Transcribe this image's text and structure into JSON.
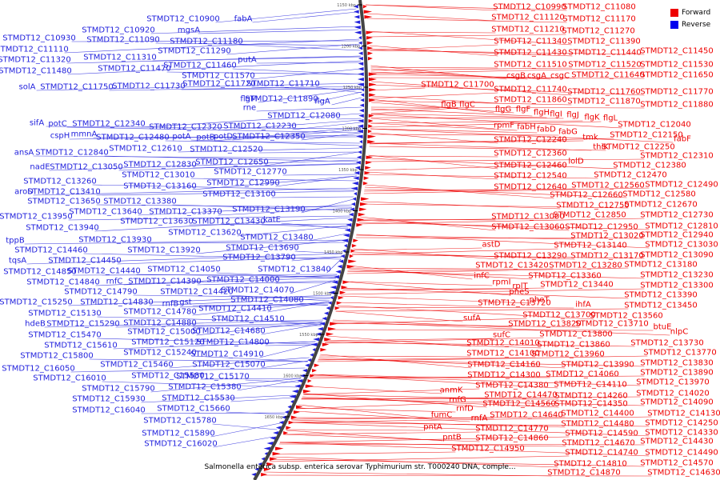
{
  "caption": "Salmonella enterica subsp. enterica serovar Typhimurium str. T000240 DNA, comple...",
  "legend": [
    {
      "label": "Forward",
      "color": "#ee0000"
    },
    {
      "label": "Reverse",
      "color": "#0000ee"
    }
  ],
  "colors": {
    "forward": "#ee0000",
    "reverse": "#2222dd",
    "backbone": "#444444"
  },
  "ticks": [
    "1150 kbp",
    "1200 kbp",
    "1250 kbp",
    "1300 kbp",
    "1350 kbp",
    "1400 kbp",
    "1450 kbp",
    "1500 kbp",
    "1550 kbp",
    "1600 kbp",
    "1650 kbp"
  ],
  "left_labels": [
    [
      "STMDT12_C10900",
      229,
      23
    ],
    [
      "fabA",
      304,
      23
    ],
    [
      "STMDT12_C10920",
      148,
      37
    ],
    [
      "mgsA",
      236,
      37
    ],
    [
      "STMDT12_C10930",
      49,
      47
    ],
    [
      "STMDT12_C11090",
      154,
      49
    ],
    [
      "STMDT12_C11180",
      258,
      51
    ],
    [
      "STMDT12_C11110",
      40,
      61
    ],
    [
      "STMDT12_C11290",
      243,
      63
    ],
    [
      "STMDT12_C11320",
      43,
      74
    ],
    [
      "STMDT12_C11310",
      150,
      71
    ],
    [
      "putA",
      309,
      74
    ],
    [
      "STMDT12_C11470",
      168,
      85
    ],
    [
      "STMDT12_C11460",
      250,
      81
    ],
    [
      "STMDT12_C11480",
      44,
      88
    ],
    [
      "STMDT12_C11570",
      273,
      94
    ],
    [
      "solA",
      34,
      108
    ],
    [
      "STMDT12_C11750",
      96,
      108
    ],
    [
      "STMDT12_C11730",
      186,
      107
    ],
    [
      "STMDT12_C11720",
      274,
      104
    ],
    [
      "STMDT12_C11710",
      354,
      104
    ],
    [
      "flgM",
      311,
      123
    ],
    [
      "STMDT12_C11890",
      352,
      123
    ],
    [
      "flgA",
      403,
      126
    ],
    [
      "rne",
      312,
      134
    ],
    [
      "STMDT12_C12080",
      380,
      144
    ],
    [
      "sifA",
      46,
      153
    ],
    [
      "potC",
      72,
      154
    ],
    [
      "STMDT12_C12340",
      136,
      154
    ],
    [
      "STMDT12_C12320",
      232,
      158
    ],
    [
      "STMDT12_C12230",
      325,
      157
    ],
    [
      "cspH",
      75,
      169
    ],
    [
      "mmnA",
      105,
      167
    ],
    [
      "STMDT12_C12480",
      166,
      171
    ],
    [
      "potA",
      227,
      170
    ],
    [
      "potB",
      257,
      171
    ],
    [
      "potD",
      279,
      170
    ],
    [
      "STMDT12_C12350",
      336,
      170
    ],
    [
      "STMDT12_C12610",
      182,
      185
    ],
    [
      "STMDT12_C12520",
      283,
      186
    ],
    [
      "ansA",
      30,
      190
    ],
    [
      "STMDT12_C12840",
      90,
      190
    ],
    [
      "STMDT12_C12650",
      290,
      202
    ],
    [
      "nadE",
      50,
      208
    ],
    [
      "STMDT12_C13050",
      108,
      208
    ],
    [
      "STMDT12_C12830",
      200,
      205
    ],
    [
      "STMDT12_C12770",
      313,
      214
    ],
    [
      "STMDT12_C13010",
      198,
      218
    ],
    [
      "STMDT12_C13260",
      75,
      226
    ],
    [
      "STMDT12_C13160",
      200,
      232
    ],
    [
      "STMDT12_C12990",
      304,
      228
    ],
    [
      "aroD",
      30,
      239
    ],
    [
      "STMDT12_C13410",
      80,
      239
    ],
    [
      "STMDT12_C13100",
      299,
      242
    ],
    [
      "STMDT12_C13650",
      80,
      251
    ],
    [
      "STMDT12_C13380",
      175,
      251
    ],
    [
      "STMDT12_C13190",
      336,
      261
    ],
    [
      "STMDT12_C13640",
      132,
      264
    ],
    [
      "STMDT12_C13370",
      232,
      264
    ],
    [
      "STMDT12_C13950",
      45,
      270
    ],
    [
      "STMDT12_C13630",
      196,
      276
    ],
    [
      "STMDT12_C13430",
      286,
      276
    ],
    [
      "katE",
      340,
      274
    ],
    [
      "STMDT12_C13940",
      78,
      284
    ],
    [
      "STMDT12_C13620",
      256,
      290
    ],
    [
      "STMDT12_C13480",
      346,
      296
    ],
    [
      "tppB",
      19,
      300
    ],
    [
      "STMDT12_C13930",
      144,
      299
    ],
    [
      "STMDT12_C13690",
      328,
      309
    ],
    [
      "STMDT12_C14460",
      64,
      312
    ],
    [
      "STMDT12_C13920",
      205,
      312
    ],
    [
      "tqsA",
      22,
      325
    ],
    [
      "STMDT12_C14450",
      106,
      325
    ],
    [
      "STMDT12_C13790",
      324,
      321
    ],
    [
      "STMDT12_C14850",
      50,
      339
    ],
    [
      "STMDT12_C14440",
      130,
      338
    ],
    [
      "STMDT12_C14050",
      230,
      336
    ],
    [
      "STMDT12_C13840",
      368,
      336
    ],
    [
      "STMDT12_C14840",
      79,
      352
    ],
    [
      "rnfC",
      143,
      351
    ],
    [
      "STMDT12_C14390",
      206,
      351
    ],
    [
      "STMDT12_C14000",
      304,
      349
    ],
    [
      "STMDT12_C14790",
      126,
      364
    ],
    [
      "STMDT12_C14420",
      246,
      364
    ],
    [
      "STMDT12_C14070",
      322,
      362
    ],
    [
      "STMDT12_C15250",
      45,
      377
    ],
    [
      "STMDT12_C14830",
      146,
      377
    ],
    [
      "rnfB",
      213,
      379
    ],
    [
      "gst",
      232,
      377
    ],
    [
      "STMDT12_C14080",
      334,
      374
    ],
    [
      "STMDT12_C15130",
      81,
      391
    ],
    [
      "STMDT12_C14780",
      200,
      389
    ],
    [
      "STMDT12_C14410",
      294,
      385
    ],
    [
      "hdeB",
      44,
      404
    ],
    [
      "STMDT12_C15290",
      104,
      404
    ],
    [
      "STMDT12_C14880",
      200,
      403
    ],
    [
      "STMDT12_C14510",
      310,
      398
    ],
    [
      "STMDT12_C15470",
      81,
      418
    ],
    [
      "STMDT12_C15000",
      205,
      414
    ],
    [
      "STMDT12_C14680",
      286,
      413
    ],
    [
      "STMDT12_C15610",
      101,
      431
    ],
    [
      "STMDT12_C15120",
      210,
      427
    ],
    [
      "STMDT12_C14800",
      291,
      427
    ],
    [
      "STMDT12_C15800",
      71,
      444
    ],
    [
      "STMDT12_C15240",
      200,
      440
    ],
    [
      "STMDT12_C14910",
      284,
      442
    ],
    [
      "STMDT12_C15460",
      171,
      455
    ],
    [
      "STMDT12_C15070",
      286,
      455
    ],
    [
      "STMDT12_C16050",
      48,
      460
    ],
    [
      "STMDT12_C15580",
      210,
      469
    ],
    [
      "STMDT12_C15170",
      266,
      470
    ],
    [
      "STMDT12_C16010",
      87,
      472
    ],
    [
      "STMDT12_C15790",
      148,
      485
    ],
    [
      "STMDT12_C15380",
      256,
      483
    ],
    [
      "STMDT12_C15930",
      136,
      498
    ],
    [
      "STMDT12_C15530",
      248,
      497
    ],
    [
      "STMDT12_C16040",
      136,
      512
    ],
    [
      "STMDT12_C15660",
      242,
      510
    ],
    [
      "STMDT12_C15780",
      225,
      525
    ],
    [
      "STMDT12_C15890",
      223,
      541
    ],
    [
      "STMDT12_C16020",
      226,
      554
    ]
  ],
  "right_labels": [
    [
      "STMDT12_C10990",
      662,
      8
    ],
    [
      "STMDT12_C11080",
      749,
      8
    ],
    [
      "STMDT12_C11120",
      660,
      21
    ],
    [
      "STMDT12_C11170",
      749,
      23
    ],
    [
      "STMDT12_C11210",
      660,
      36
    ],
    [
      "STMDT12_C11270",
      748,
      38
    ],
    [
      "STMDT12_C11340",
      663,
      51
    ],
    [
      "STMDT12_C11390",
      755,
      51
    ],
    [
      "STMDT12_C11430",
      663,
      65
    ],
    [
      "STMDT12_C11440",
      756,
      65
    ],
    [
      "STMDT12_C11450",
      846,
      63
    ],
    [
      "STMDT12_C11510",
      663,
      80
    ],
    [
      "STMDT12_C11520",
      756,
      80
    ],
    [
      "STMDT12_C11530",
      846,
      80
    ],
    [
      "csgB",
      645,
      94
    ],
    [
      "csgA",
      671,
      94
    ],
    [
      "csgC",
      700,
      94
    ],
    [
      "STMDT12_C11640",
      760,
      93
    ],
    [
      "STMDT12_C11650",
      846,
      93
    ],
    [
      "STMDT12_C11700",
      572,
      105
    ],
    [
      "STMDT12_C11740",
      663,
      111
    ],
    [
      "STMDT12_C11760",
      755,
      114
    ],
    [
      "STMDT12_C11770",
      846,
      114
    ],
    [
      "STMDT12_C11860",
      663,
      124
    ],
    [
      "STMDT12_C11870",
      755,
      126
    ],
    [
      "STMDT12_C11880",
      846,
      130
    ],
    [
      "flgB",
      561,
      130
    ],
    [
      "flgC",
      584,
      130
    ],
    [
      "flgG",
      629,
      136
    ],
    [
      "flgF",
      654,
      136
    ],
    [
      "flgH",
      677,
      140
    ],
    [
      "flgI",
      695,
      142
    ],
    [
      "flgJ",
      716,
      143
    ],
    [
      "flgK",
      740,
      146
    ],
    [
      "flgL",
      763,
      147
    ],
    [
      "STMDT12_C12040",
      818,
      155
    ],
    [
      "rpmF",
      630,
      156
    ],
    [
      "fabH",
      658,
      158
    ],
    [
      "fabD",
      683,
      161
    ],
    [
      "fabG",
      710,
      164
    ],
    [
      "tmk",
      738,
      171
    ],
    [
      "STMDT12_C12150",
      808,
      168
    ],
    [
      "fabF",
      853,
      173
    ],
    [
      "STMDT12_C12240",
      663,
      174
    ],
    [
      "thiK",
      751,
      183
    ],
    [
      "STMDT12_C12250",
      798,
      183
    ],
    [
      "STMDT12_C12360",
      663,
      191
    ],
    [
      "STMDT12_C12310",
      846,
      194
    ],
    [
      "lolD",
      720,
      201
    ],
    [
      "STMDT12_C12460",
      663,
      206
    ],
    [
      "STMDT12_C12380",
      812,
      206
    ],
    [
      "STMDT12_C12540",
      663,
      219
    ],
    [
      "STMDT12_C12470",
      788,
      218
    ],
    [
      "STMDT12_C12640",
      663,
      233
    ],
    [
      "STMDT12_C12560",
      760,
      231
    ],
    [
      "STMDT12_C12490",
      852,
      230
    ],
    [
      "STMDT12_C12660",
      733,
      243
    ],
    [
      "STMDT12_C12580",
      824,
      242
    ],
    [
      "STMDT12_C12750",
      741,
      256
    ],
    [
      "STMDT12_C12670",
      826,
      255
    ],
    [
      "STMDT12_C13000",
      660,
      270
    ],
    [
      "STMDT12_C12850",
      737,
      268
    ],
    [
      "STMDT12_C12730",
      846,
      268
    ],
    [
      "STMDT12_C13060",
      660,
      283
    ],
    [
      "STMDT12_C12950",
      752,
      283
    ],
    [
      "STMDT12_C12810",
      852,
      282
    ],
    [
      "STMDT12_C13020",
      759,
      294
    ],
    [
      "STMDT12_C12940",
      846,
      293
    ],
    [
      "astD",
      614,
      305
    ],
    [
      "STMDT12_C13140",
      738,
      306
    ],
    [
      "STMDT12_C13030",
      852,
      305
    ],
    [
      "STMDT12_C13290",
      663,
      319
    ],
    [
      "STMDT12_C13170",
      759,
      319
    ],
    [
      "STMDT12_C13090",
      846,
      318
    ],
    [
      "STMDT12_C13420",
      640,
      331
    ],
    [
      "STMDT12_C13280",
      732,
      331
    ],
    [
      "STMDT12_C13180",
      826,
      330
    ],
    [
      "infC",
      602,
      344
    ],
    [
      "STMDT12_C13360",
      706,
      344
    ],
    [
      "STMDT12_C13230",
      846,
      343
    ],
    [
      "rpmI",
      627,
      352
    ],
    [
      "rplT",
      650,
      357
    ],
    [
      "STMDT12_C13440",
      721,
      355
    ],
    [
      "STMDT12_C13300",
      846,
      356
    ],
    [
      "pheS",
      649,
      364
    ],
    [
      "STMDT12_C13390",
      826,
      368
    ],
    [
      "pheT",
      674,
      374
    ],
    [
      "STMDT12_C13720",
      643,
      378
    ],
    [
      "ihfA",
      729,
      380
    ],
    [
      "STMDT12_C13450",
      826,
      381
    ],
    [
      "STMDT12_C13700",
      699,
      393
    ],
    [
      "STMDT12_C13560",
      783,
      394
    ],
    [
      "sufA",
      590,
      397
    ],
    [
      "STMDT12_C13820",
      681,
      404
    ],
    [
      "STMDT12_C13710",
      765,
      404
    ],
    [
      "btuE",
      828,
      408
    ],
    [
      "sufC",
      627,
      418
    ],
    [
      "STMDT12_C13800",
      720,
      417
    ],
    [
      "nlpC",
      849,
      414
    ],
    [
      "STMDT12_C14010",
      629,
      428
    ],
    [
      "STMDT12_C13860",
      717,
      430
    ],
    [
      "STMDT12_C13730",
      834,
      428
    ],
    [
      "STMDT12_C14100",
      629,
      441
    ],
    [
      "STMDT12_C13960",
      710,
      442
    ],
    [
      "STMDT12_C13770",
      850,
      440
    ],
    [
      "STMDT12_C14160",
      630,
      455
    ],
    [
      "STMDT12_C13990",
      747,
      455
    ],
    [
      "STMDT12_C13830",
      846,
      453
    ],
    [
      "STMDT12_C14300",
      630,
      468
    ],
    [
      "STMDT12_C14060",
      728,
      467
    ],
    [
      "STMDT12_C13890",
      846,
      465
    ],
    [
      "STMDT12_C14380",
      640,
      481
    ],
    [
      "STMDT12_C14110",
      738,
      480
    ],
    [
      "STMDT12_C13970",
      841,
      477
    ],
    [
      "anmK",
      564,
      487
    ],
    [
      "STMDT12_C14470",
      651,
      493
    ],
    [
      "STMDT12_C14260",
      739,
      494
    ],
    [
      "STMDT12_C14020",
      841,
      491
    ],
    [
      "rnfG",
      572,
      499
    ],
    [
      "STMDT12_C14560",
      649,
      504
    ],
    [
      "STMDT12_C14350",
      739,
      504
    ],
    [
      "STMDT12_C14090",
      846,
      502
    ],
    [
      "rnfD",
      581,
      510
    ],
    [
      "STMDT12_C14640",
      658,
      518
    ],
    [
      "STMDT12_C14400",
      747,
      516
    ],
    [
      "STMDT12_C14130",
      855,
      516
    ],
    [
      "fumC",
      552,
      518
    ],
    [
      "rnfA",
      599,
      522
    ],
    [
      "STMDT12_C14480",
      747,
      529
    ],
    [
      "STMDT12_C14250",
      852,
      528
    ],
    [
      "pntA",
      541,
      533
    ],
    [
      "STMDT12_C14770",
      640,
      535
    ],
    [
      "STMDT12_C14590",
      752,
      541
    ],
    [
      "STMDT12_C14330",
      852,
      540
    ],
    [
      "pntB",
      565,
      546
    ],
    [
      "STMDT12_C14860",
      640,
      547
    ],
    [
      "STMDT12_C14670",
      748,
      553
    ],
    [
      "STMDT12_C14430",
      846,
      551
    ],
    [
      "STMDT12_C14950",
      610,
      560
    ],
    [
      "STMDT12_C14740",
      752,
      565
    ],
    [
      "STMDT12_C14490",
      852,
      565
    ],
    [
      "STMDT12_C14810",
      738,
      579
    ],
    [
      "STMDT12_C14570",
      846,
      578
    ],
    [
      "STMDT12_C14870",
      730,
      590
    ],
    [
      "STMDT12_C14630",
      855,
      590
    ]
  ]
}
